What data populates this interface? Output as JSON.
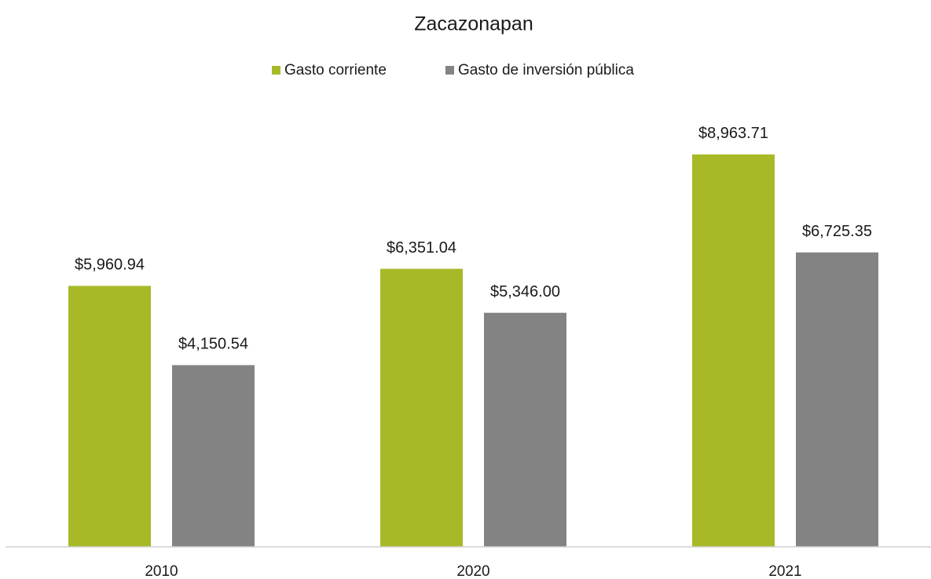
{
  "chart_data": {
    "type": "bar",
    "title": "Zacazonapan",
    "categories": [
      "2010",
      "2020",
      "2021"
    ],
    "series": [
      {
        "name": "Gasto corriente",
        "color": "#a8b928",
        "values": [
          5960.94,
          6351.04,
          8963.71
        ],
        "value_labels": [
          "$5,960.94",
          "$6,351.04",
          "$8,963.71"
        ]
      },
      {
        "name": "Gasto de inversión pública",
        "color": "#838383",
        "values": [
          4150.54,
          5346.0,
          6725.35
        ],
        "value_labels": [
          "$4,150.54",
          "$5,346.00",
          "$6,725.35"
        ]
      }
    ],
    "ylim": [
      0,
      10000
    ]
  }
}
